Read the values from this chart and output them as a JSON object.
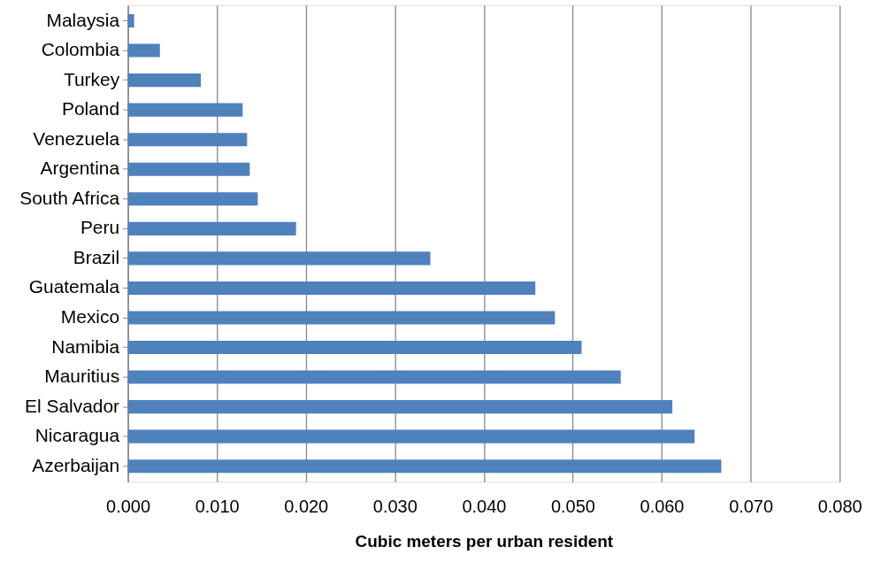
{
  "chart_data": {
    "type": "bar",
    "orientation": "horizontal",
    "xlabel": "Cubic meters per urban resident",
    "categories": [
      "Malaysia",
      "Colombia",
      "Turkey",
      "Poland",
      "Venezuela",
      "Argentina",
      "South Africa",
      "Peru",
      "Brazil",
      "Guatemala",
      "Mexico",
      "Namibia",
      "Mauritius",
      "El Salvador",
      "Nicaragua",
      "Azerbaijan"
    ],
    "values": [
      0.0007,
      0.0036,
      0.0082,
      0.0129,
      0.0134,
      0.0137,
      0.0146,
      0.0189,
      0.034,
      0.0458,
      0.048,
      0.051,
      0.0554,
      0.0612,
      0.0637,
      0.0667
    ],
    "color": "#4f81bd",
    "xlim": [
      0,
      0.08
    ],
    "xticks": [
      {
        "value": 0,
        "label": "0.000"
      },
      {
        "value": 0.01,
        "label": "0.010"
      },
      {
        "value": 0.02,
        "label": "0.020"
      },
      {
        "value": 0.03,
        "label": "0.030"
      },
      {
        "value": 0.04,
        "label": "0.040"
      },
      {
        "value": 0.05,
        "label": "0.050"
      },
      {
        "value": 0.06,
        "label": "0.060"
      },
      {
        "value": 0.07,
        "label": "0.070"
      },
      {
        "value": 0.08,
        "label": "0.080"
      }
    ],
    "grid": "x"
  }
}
